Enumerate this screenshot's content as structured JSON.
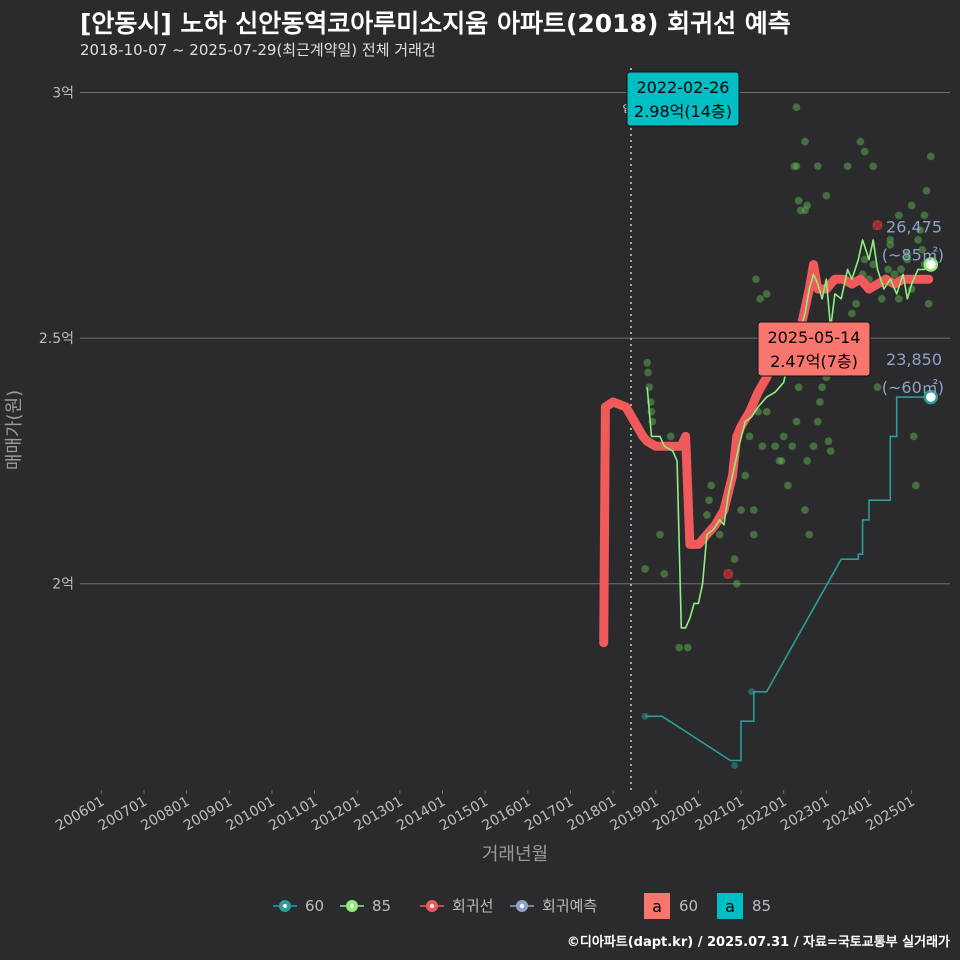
{
  "header": {
    "title": "[안동시] 노하 신안동역코아루미소지움 아파트(2018) 회귀선 예측",
    "subtitle": "2018-10-07 ~ 2025-07-29(최근계약일) 전체 거래건"
  },
  "footer": {
    "credit": "©디아파트(dapt.kr) / 2025.07.31 / 자료=국토교통부 실거래가"
  },
  "chart_data": {
    "type": "line",
    "xlabel": "거래년월",
    "ylabel": "매매가(원)",
    "x_range": [
      2005.5,
      2025.9
    ],
    "y_range": [
      1.58,
      3.05
    ],
    "x_ticks": [
      {
        "label": "200601",
        "x": 2006.0
      },
      {
        "label": "200701",
        "x": 2007.0
      },
      {
        "label": "200801",
        "x": 2008.0
      },
      {
        "label": "200901",
        "x": 2009.0
      },
      {
        "label": "201001",
        "x": 2010.0
      },
      {
        "label": "201101",
        "x": 2011.0
      },
      {
        "label": "201201",
        "x": 2012.0
      },
      {
        "label": "201301",
        "x": 2013.0
      },
      {
        "label": "201401",
        "x": 2014.0
      },
      {
        "label": "201501",
        "x": 2015.0
      },
      {
        "label": "201601",
        "x": 2016.0
      },
      {
        "label": "201701",
        "x": 2017.0
      },
      {
        "label": "201801",
        "x": 2018.0
      },
      {
        "label": "201901",
        "x": 2019.0
      },
      {
        "label": "202001",
        "x": 2020.0
      },
      {
        "label": "202101",
        "x": 2021.0
      },
      {
        "label": "202201",
        "x": 2022.0
      },
      {
        "label": "202301",
        "x": 2023.0
      },
      {
        "label": "202401",
        "x": 2024.0
      },
      {
        "label": "202501",
        "x": 2025.0
      }
    ],
    "y_ticks": [
      {
        "label": "2억",
        "y": 2.0
      },
      {
        "label": "2.5억",
        "y": 2.5
      },
      {
        "label": "3억",
        "y": 3.0
      }
    ],
    "move_in": {
      "label": "입주",
      "x": 2018.42
    },
    "series": [
      {
        "name": "60",
        "color": "#2a9d9a",
        "values": [
          [
            2018.75,
            1.73
          ],
          [
            2019.15,
            1.73
          ],
          [
            2020.75,
            1.64
          ],
          [
            2021.0,
            1.64
          ],
          [
            2021.0,
            1.72
          ],
          [
            2021.3,
            1.72
          ],
          [
            2021.3,
            1.78
          ],
          [
            2021.6,
            1.78
          ],
          [
            2023.35,
            2.05
          ],
          [
            2023.75,
            2.05
          ],
          [
            2023.75,
            2.06
          ],
          [
            2023.85,
            2.06
          ],
          [
            2023.85,
            2.13
          ],
          [
            2024.0,
            2.13
          ],
          [
            2024.0,
            2.17
          ],
          [
            2024.3,
            2.17
          ],
          [
            2024.3,
            2.17
          ],
          [
            2024.5,
            2.17
          ],
          [
            2024.5,
            2.3
          ],
          [
            2024.65,
            2.3
          ],
          [
            2024.65,
            2.38
          ],
          [
            2025.4,
            2.38
          ]
        ]
      },
      {
        "name": "85",
        "color": "#90ee7e",
        "values": [
          [
            2018.8,
            2.4
          ],
          [
            2018.9,
            2.3
          ],
          [
            2019.1,
            2.3
          ],
          [
            2019.2,
            2.28
          ],
          [
            2019.4,
            2.27
          ],
          [
            2019.5,
            2.25
          ],
          [
            2019.6,
            1.91
          ],
          [
            2019.7,
            1.91
          ],
          [
            2019.8,
            1.93
          ],
          [
            2019.9,
            1.96
          ],
          [
            2020.0,
            1.96
          ],
          [
            2020.1,
            2.0
          ],
          [
            2020.2,
            2.1
          ],
          [
            2020.35,
            2.11
          ],
          [
            2020.5,
            2.13
          ],
          [
            2020.6,
            2.12
          ],
          [
            2020.7,
            2.18
          ],
          [
            2020.8,
            2.22
          ],
          [
            2020.95,
            2.28
          ],
          [
            2021.1,
            2.33
          ],
          [
            2021.25,
            2.34
          ],
          [
            2021.4,
            2.36
          ],
          [
            2021.6,
            2.38
          ],
          [
            2021.8,
            2.39
          ],
          [
            2022.0,
            2.41
          ],
          [
            2022.1,
            2.45
          ],
          [
            2022.25,
            2.5
          ],
          [
            2022.4,
            2.52
          ],
          [
            2022.5,
            2.55
          ],
          [
            2022.6,
            2.6
          ],
          [
            2022.7,
            2.63
          ],
          [
            2022.8,
            2.61
          ],
          [
            2022.9,
            2.58
          ],
          [
            2023.0,
            2.62
          ],
          [
            2023.1,
            2.52
          ],
          [
            2023.2,
            2.59
          ],
          [
            2023.35,
            2.58
          ],
          [
            2023.5,
            2.64
          ],
          [
            2023.6,
            2.62
          ],
          [
            2023.75,
            2.66
          ],
          [
            2023.85,
            2.7
          ],
          [
            2024.0,
            2.66
          ],
          [
            2024.1,
            2.7
          ],
          [
            2024.2,
            2.64
          ],
          [
            2024.35,
            2.6
          ],
          [
            2024.5,
            2.62
          ],
          [
            2024.65,
            2.59
          ],
          [
            2024.8,
            2.63
          ],
          [
            2024.9,
            2.58
          ],
          [
            2025.0,
            2.61
          ],
          [
            2025.15,
            2.64
          ],
          [
            2025.3,
            2.64
          ],
          [
            2025.5,
            2.65
          ]
        ]
      },
      {
        "name": "회귀선",
        "color": "#f05a5a",
        "values": [
          [
            2017.78,
            1.88
          ],
          [
            2017.82,
            2.36
          ],
          [
            2018.0,
            2.37
          ],
          [
            2018.3,
            2.36
          ],
          [
            2018.5,
            2.33
          ],
          [
            2018.7,
            2.3
          ],
          [
            2018.8,
            2.29
          ],
          [
            2019.0,
            2.28
          ],
          [
            2019.3,
            2.28
          ],
          [
            2019.6,
            2.28
          ],
          [
            2019.7,
            2.3
          ],
          [
            2019.8,
            2.08
          ],
          [
            2020.0,
            2.08
          ],
          [
            2020.2,
            2.1
          ],
          [
            2020.4,
            2.12
          ],
          [
            2020.6,
            2.15
          ],
          [
            2020.8,
            2.22
          ],
          [
            2020.9,
            2.3
          ],
          [
            2021.0,
            2.32
          ],
          [
            2021.2,
            2.35
          ],
          [
            2021.4,
            2.39
          ],
          [
            2021.6,
            2.42
          ],
          [
            2021.8,
            2.46
          ],
          [
            2022.0,
            2.48
          ],
          [
            2022.2,
            2.49
          ],
          [
            2022.4,
            2.52
          ],
          [
            2022.6,
            2.6
          ],
          [
            2022.7,
            2.65
          ],
          [
            2022.8,
            2.6
          ],
          [
            2023.0,
            2.6
          ],
          [
            2023.2,
            2.62
          ],
          [
            2023.4,
            2.62
          ],
          [
            2023.6,
            2.61
          ],
          [
            2023.8,
            2.62
          ],
          [
            2024.0,
            2.6
          ],
          [
            2024.2,
            2.61
          ],
          [
            2024.4,
            2.62
          ],
          [
            2024.6,
            2.61
          ],
          [
            2024.8,
            2.62
          ],
          [
            2025.0,
            2.62
          ],
          [
            2025.2,
            2.62
          ],
          [
            2025.4,
            2.62
          ]
        ]
      }
    ],
    "points_85": [
      [
        2018.75,
        2.03
      ],
      [
        2018.8,
        2.45
      ],
      [
        2018.82,
        2.43
      ],
      [
        2018.85,
        2.4
      ],
      [
        2018.88,
        2.37
      ],
      [
        2018.9,
        2.35
      ],
      [
        2018.92,
        2.33
      ],
      [
        2019.1,
        2.1
      ],
      [
        2019.2,
        2.02
      ],
      [
        2019.35,
        2.3
      ],
      [
        2019.55,
        1.87
      ],
      [
        2019.75,
        1.87
      ],
      [
        2020.2,
        2.14
      ],
      [
        2020.25,
        2.17
      ],
      [
        2020.3,
        2.2
      ],
      [
        2020.5,
        2.1
      ],
      [
        2020.85,
        2.05
      ],
      [
        2020.9,
        2.0
      ],
      [
        2021.0,
        2.15
      ],
      [
        2021.1,
        2.22
      ],
      [
        2021.2,
        2.3
      ],
      [
        2021.3,
        2.1
      ],
      [
        2021.3,
        2.15
      ],
      [
        2021.5,
        2.28
      ],
      [
        2021.6,
        2.35
      ],
      [
        2021.8,
        2.28
      ],
      [
        2021.9,
        2.25
      ],
      [
        2021.95,
        2.25
      ],
      [
        2022.0,
        2.3
      ],
      [
        2022.1,
        2.2
      ],
      [
        2022.2,
        2.28
      ],
      [
        2022.3,
        2.33
      ],
      [
        2022.35,
        2.4
      ],
      [
        2022.4,
        2.45
      ],
      [
        2022.45,
        2.5
      ],
      [
        2022.5,
        2.15
      ],
      [
        2022.55,
        2.25
      ],
      [
        2022.6,
        2.1
      ],
      [
        2022.7,
        2.28
      ],
      [
        2022.8,
        2.33
      ],
      [
        2022.85,
        2.37
      ],
      [
        2022.9,
        2.4
      ],
      [
        2023.0,
        2.42
      ],
      [
        2023.05,
        2.29
      ],
      [
        2023.1,
        2.27
      ],
      [
        2023.2,
        2.45
      ],
      [
        2023.3,
        2.5
      ],
      [
        2023.45,
        2.52
      ],
      [
        2023.6,
        2.55
      ],
      [
        2023.7,
        2.57
      ],
      [
        2023.85,
        2.63
      ],
      [
        2023.9,
        2.66
      ],
      [
        2024.0,
        2.62
      ],
      [
        2024.1,
        2.65
      ],
      [
        2024.2,
        2.4
      ],
      [
        2024.3,
        2.58
      ],
      [
        2024.45,
        2.64
      ],
      [
        2024.5,
        2.69
      ],
      [
        2024.6,
        2.63
      ],
      [
        2024.7,
        2.58
      ],
      [
        2024.75,
        2.64
      ],
      [
        2024.85,
        2.62
      ],
      [
        2024.9,
        2.66
      ],
      [
        2025.0,
        2.6
      ],
      [
        2025.05,
        2.3
      ],
      [
        2025.1,
        2.2
      ],
      [
        2025.15,
        2.7
      ],
      [
        2025.25,
        2.68
      ],
      [
        2025.3,
        2.75
      ],
      [
        2025.35,
        2.8
      ],
      [
        2025.45,
        2.87
      ],
      [
        2021.45,
        2.58
      ],
      [
        2021.6,
        2.59
      ],
      [
        2021.7,
        2.45
      ],
      [
        2022.25,
        2.85
      ],
      [
        2022.3,
        2.85
      ],
      [
        2022.35,
        2.78
      ],
      [
        2022.4,
        2.76
      ],
      [
        2022.5,
        2.76
      ],
      [
        2022.55,
        2.77
      ],
      [
        2022.8,
        2.85
      ],
      [
        2023.0,
        2.79
      ],
      [
        2023.5,
        2.85
      ],
      [
        2023.8,
        2.9
      ],
      [
        2023.9,
        2.88
      ],
      [
        2024.1,
        2.85
      ],
      [
        2024.5,
        2.7
      ],
      [
        2024.7,
        2.75
      ],
      [
        2024.9,
        2.67
      ],
      [
        2025.0,
        2.77
      ],
      [
        2025.2,
        2.72
      ],
      [
        2025.3,
        2.65
      ],
      [
        2025.4,
        2.57
      ],
      [
        2022.3,
        2.97
      ],
      [
        2022.5,
        2.9
      ],
      [
        2021.35,
        2.62
      ],
      [
        2021.4,
        2.35
      ]
    ],
    "points_60": [
      [
        2018.75,
        1.73
      ],
      [
        2020.85,
        1.63
      ],
      [
        2021.25,
        1.78
      ]
    ],
    "flags": [
      [
        2020.7,
        2.02
      ],
      [
        2024.2,
        2.73
      ]
    ],
    "annotations": [
      {
        "date": "2022-02-26",
        "value": "2.98억(14층)",
        "x": 2022.15,
        "y": 2.98
      },
      {
        "date": "2025-05-14",
        "value": "2.47억(7층)",
        "x": 2025.37,
        "y": 2.47
      }
    ],
    "end_labels": [
      {
        "value": "26,475",
        "size": "(~85㎡)",
        "x": 2025.45,
        "y": 2.65
      },
      {
        "value": "23,850",
        "size": "(~60㎡)",
        "x": 2025.45,
        "y": 2.38
      }
    ],
    "legend": [
      {
        "label": "60",
        "color": "#2a9d9a"
      },
      {
        "label": "85",
        "color": "#90ee7e"
      },
      {
        "label": "회귀선",
        "color": "#f05a5a"
      },
      {
        "label": "회귀예측",
        "color": "#8ea3c8"
      }
    ],
    "legend_labels": [
      {
        "glyph": "a",
        "label": "60",
        "color": "#f8766d"
      },
      {
        "glyph": "a",
        "label": "85",
        "color": "#00bfc4"
      }
    ]
  }
}
